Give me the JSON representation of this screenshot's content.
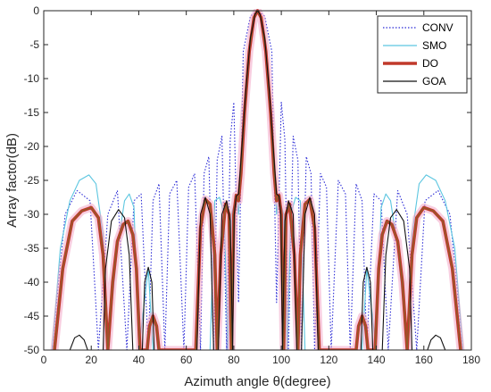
{
  "chart_data": {
    "type": "line",
    "title": "",
    "xlabel": "Azimuth angle θ(degree)",
    "ylabel": "Array factor(dB)",
    "xlim": [
      0,
      180
    ],
    "ylim": [
      -50,
      0
    ],
    "xticks": [
      "0",
      "20",
      "40",
      "60",
      "80",
      "100",
      "120",
      "140",
      "160",
      "180"
    ],
    "yticks": [
      "0",
      "-5",
      "-10",
      "-15",
      "-20",
      "-25",
      "-30",
      "-35",
      "-40",
      "-45",
      "-50"
    ],
    "grid": false,
    "legend_position": "top-right",
    "series": [
      {
        "name": "CONV",
        "color": "#2b2bd6",
        "style": "dotted",
        "points": [
          [
            3.5,
            -50
          ],
          [
            9,
            -30
          ],
          [
            14,
            -26.5
          ],
          [
            19.5,
            -28
          ],
          [
            23,
            -50
          ],
          [
            27,
            -30
          ],
          [
            31,
            -26.5
          ],
          [
            35,
            -50
          ],
          [
            38,
            -28
          ],
          [
            41,
            -27
          ],
          [
            44,
            -50
          ],
          [
            46,
            -28
          ],
          [
            48.5,
            -25.5
          ],
          [
            51,
            -50
          ],
          [
            53,
            -27
          ],
          [
            56,
            -25
          ],
          [
            59,
            -50
          ],
          [
            61,
            -26
          ],
          [
            63.5,
            -24
          ],
          [
            66,
            -50
          ],
          [
            67.5,
            -24
          ],
          [
            69.5,
            -21.5
          ],
          [
            71.5,
            -50
          ],
          [
            73,
            -22
          ],
          [
            75,
            -18.5
          ],
          [
            77,
            -50
          ],
          [
            78.5,
            -19
          ],
          [
            80,
            -13.5
          ],
          [
            82,
            -43
          ],
          [
            84,
            -6
          ],
          [
            87,
            -0.8
          ],
          [
            90,
            0
          ],
          [
            93,
            -0.8
          ],
          [
            96,
            -6
          ],
          [
            98,
            -43
          ],
          [
            100,
            -13.5
          ],
          [
            101.5,
            -19
          ],
          [
            103,
            -50
          ],
          [
            105,
            -18.5
          ],
          [
            107,
            -22
          ],
          [
            108.5,
            -50
          ],
          [
            110.5,
            -21.5
          ],
          [
            112.5,
            -24
          ],
          [
            114,
            -50
          ],
          [
            116.5,
            -24
          ],
          [
            119,
            -26
          ],
          [
            121,
            -50
          ],
          [
            124,
            -25
          ],
          [
            127,
            -27
          ],
          [
            129,
            -50
          ],
          [
            131.5,
            -25.5
          ],
          [
            134,
            -28
          ],
          [
            136,
            -50
          ],
          [
            139,
            -27
          ],
          [
            142,
            -28
          ],
          [
            145,
            -50
          ],
          [
            149,
            -26.5
          ],
          [
            153,
            -30
          ],
          [
            157,
            -50
          ],
          [
            160.5,
            -28
          ],
          [
            166,
            -26.5
          ],
          [
            171,
            -30
          ],
          [
            176.5,
            -50
          ]
        ]
      },
      {
        "name": "SMO",
        "color": "#5cc6e0",
        "style": "solid",
        "points": [
          [
            3.5,
            -50
          ],
          [
            7,
            -35
          ],
          [
            11,
            -28
          ],
          [
            15,
            -25
          ],
          [
            19,
            -24.2
          ],
          [
            22,
            -25.5
          ],
          [
            25,
            -33
          ],
          [
            27,
            -50
          ],
          [
            31,
            -35
          ],
          [
            34,
            -28
          ],
          [
            36,
            -27
          ],
          [
            38,
            -29
          ],
          [
            40,
            -50
          ],
          [
            44,
            -38
          ],
          [
            46,
            -50
          ],
          [
            70,
            -50
          ],
          [
            72,
            -28
          ],
          [
            74,
            -27.5
          ],
          [
            76,
            -30
          ],
          [
            77.5,
            -50
          ],
          [
            79,
            -30
          ],
          [
            81,
            -27.5
          ],
          [
            82,
            -30
          ],
          [
            83.5,
            -18
          ],
          [
            85.5,
            -8
          ],
          [
            88,
            -1.5
          ],
          [
            90,
            0
          ],
          [
            92,
            -1.5
          ],
          [
            94.5,
            -8
          ],
          [
            96.5,
            -18
          ],
          [
            98,
            -30
          ],
          [
            99,
            -27.5
          ],
          [
            101,
            -30
          ],
          [
            102.5,
            -50
          ],
          [
            104,
            -30
          ],
          [
            106,
            -27.5
          ],
          [
            108,
            -28
          ],
          [
            110,
            -50
          ],
          [
            134,
            -50
          ],
          [
            136,
            -38
          ],
          [
            140,
            -50
          ],
          [
            142,
            -29
          ],
          [
            144,
            -27
          ],
          [
            146,
            -28
          ],
          [
            149,
            -35
          ],
          [
            153,
            -50
          ],
          [
            155,
            -33
          ],
          [
            158,
            -25.5
          ],
          [
            161,
            -24.2
          ],
          [
            165,
            -25
          ],
          [
            169,
            -28
          ],
          [
            173,
            -35
          ],
          [
            176.5,
            -50
          ]
        ]
      },
      {
        "name": "DO",
        "color": "#c0392b",
        "style": "thick",
        "points": [
          [
            4.5,
            -50
          ],
          [
            8,
            -38
          ],
          [
            12,
            -31
          ],
          [
            16,
            -29.5
          ],
          [
            20,
            -29
          ],
          [
            23,
            -30.5
          ],
          [
            25,
            -36
          ],
          [
            27,
            -50
          ],
          [
            29,
            -40
          ],
          [
            31,
            -34
          ],
          [
            33.5,
            -31.5
          ],
          [
            35.5,
            -31
          ],
          [
            37.5,
            -33
          ],
          [
            39,
            -38
          ],
          [
            40.5,
            -50
          ],
          [
            43.5,
            -50
          ],
          [
            44.5,
            -46.5
          ],
          [
            46,
            -45
          ],
          [
            47.5,
            -46.5
          ],
          [
            48.5,
            -50
          ],
          [
            64,
            -50
          ],
          [
            66,
            -32
          ],
          [
            68,
            -27.8
          ],
          [
            70,
            -28.5
          ],
          [
            72,
            -36
          ],
          [
            73,
            -50
          ],
          [
            74.5,
            -36
          ],
          [
            76.5,
            -28.5
          ],
          [
            78,
            -30
          ],
          [
            79,
            -50
          ],
          [
            80,
            -30
          ],
          [
            81,
            -27.2
          ],
          [
            82,
            -28
          ],
          [
            83,
            -24
          ],
          [
            84.5,
            -15
          ],
          [
            86.5,
            -6
          ],
          [
            88.5,
            -1
          ],
          [
            90,
            0
          ],
          [
            91.5,
            -1
          ],
          [
            93.5,
            -6
          ],
          [
            95.5,
            -15
          ],
          [
            97,
            -24
          ],
          [
            98,
            -28
          ],
          [
            99,
            -27.2
          ],
          [
            100,
            -30
          ],
          [
            101,
            -50
          ],
          [
            102,
            -30
          ],
          [
            103.5,
            -28.5
          ],
          [
            105.5,
            -36
          ],
          [
            107,
            -50
          ],
          [
            108,
            -36
          ],
          [
            110,
            -28.5
          ],
          [
            112,
            -27.8
          ],
          [
            114,
            -32
          ],
          [
            116,
            -50
          ],
          [
            131.5,
            -50
          ],
          [
            132.5,
            -46.5
          ],
          [
            134,
            -45
          ],
          [
            135.5,
            -46.5
          ],
          [
            136.5,
            -50
          ],
          [
            139.5,
            -50
          ],
          [
            141,
            -38
          ],
          [
            142.5,
            -33
          ],
          [
            144.5,
            -31
          ],
          [
            146.5,
            -31.5
          ],
          [
            149,
            -34
          ],
          [
            151,
            -40
          ],
          [
            153,
            -50
          ],
          [
            155,
            -36
          ],
          [
            157,
            -30.5
          ],
          [
            160,
            -29
          ],
          [
            164,
            -29.5
          ],
          [
            168,
            -31
          ],
          [
            172,
            -38
          ],
          [
            175.5,
            -50
          ]
        ]
      },
      {
        "name": "GOA",
        "color": "#111111",
        "style": "solid",
        "points": [
          [
            11,
            -50
          ],
          [
            13,
            -48.2
          ],
          [
            15,
            -47.8
          ],
          [
            17,
            -48.5
          ],
          [
            18.5,
            -50
          ],
          [
            25,
            -50
          ],
          [
            26,
            -38
          ],
          [
            28.5,
            -31
          ],
          [
            31.5,
            -29.3
          ],
          [
            34,
            -30.5
          ],
          [
            36,
            -36
          ],
          [
            37.5,
            -50
          ],
          [
            41.5,
            -50
          ],
          [
            42.5,
            -40
          ],
          [
            44,
            -37.8
          ],
          [
            45.5,
            -40
          ],
          [
            46.5,
            -50
          ],
          [
            64.5,
            -50
          ],
          [
            66,
            -30
          ],
          [
            68,
            -27.5
          ],
          [
            70,
            -30
          ],
          [
            71.5,
            -50
          ],
          [
            73.5,
            -50
          ],
          [
            75,
            -30
          ],
          [
            77,
            -28
          ],
          [
            78.5,
            -31
          ],
          [
            79.5,
            -50
          ],
          [
            80.2,
            -30
          ],
          [
            81,
            -27.3
          ],
          [
            82,
            -27
          ],
          [
            83,
            -22
          ],
          [
            85,
            -12
          ],
          [
            87,
            -4
          ],
          [
            89,
            -0.5
          ],
          [
            90,
            0
          ],
          [
            91,
            -0.5
          ],
          [
            93,
            -4
          ],
          [
            95,
            -12
          ],
          [
            97,
            -22
          ],
          [
            98,
            -27
          ],
          [
            99,
            -27.3
          ],
          [
            99.8,
            -30
          ],
          [
            100.5,
            -50
          ],
          [
            101.5,
            -31
          ],
          [
            103,
            -28
          ],
          [
            105,
            -30
          ],
          [
            106.5,
            -50
          ],
          [
            108.5,
            -50
          ],
          [
            110,
            -30
          ],
          [
            112,
            -27.5
          ],
          [
            114,
            -30
          ],
          [
            115.5,
            -50
          ],
          [
            133.5,
            -50
          ],
          [
            134.5,
            -40
          ],
          [
            136,
            -37.8
          ],
          [
            137.5,
            -40
          ],
          [
            138.5,
            -50
          ],
          [
            142.5,
            -50
          ],
          [
            144,
            -36
          ],
          [
            146,
            -30.5
          ],
          [
            148.5,
            -29.3
          ],
          [
            151.5,
            -31
          ],
          [
            154,
            -38
          ],
          [
            155,
            -50
          ],
          [
            161.5,
            -50
          ],
          [
            163,
            -48.5
          ],
          [
            165,
            -47.8
          ],
          [
            167,
            -48.2
          ],
          [
            169,
            -50
          ]
        ]
      }
    ]
  }
}
